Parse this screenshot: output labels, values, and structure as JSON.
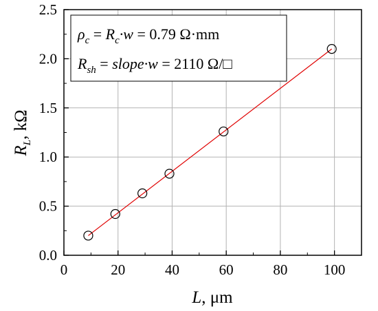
{
  "chart_data": {
    "type": "scatter",
    "x_axis": {
      "label_symbol": "L",
      "label_unit": ", μm",
      "range": [
        0,
        110
      ],
      "ticks": [
        0,
        20,
        40,
        60,
        80,
        100
      ],
      "tick_labels": [
        "0",
        "20",
        "40",
        "60",
        "80",
        "100"
      ]
    },
    "y_axis": {
      "label_symbol": "R",
      "label_subscript": "L",
      "label_unit": ", kΩ",
      "range": [
        0.0,
        2.5
      ],
      "ticks": [
        0.0,
        0.5,
        1.0,
        1.5,
        2.0,
        2.5
      ],
      "tick_labels": [
        "0.0",
        "0.5",
        "1.0",
        "1.5",
        "2.0",
        "2.5"
      ]
    },
    "grid": true,
    "series": [
      {
        "kind": "points",
        "marker": "open-circle",
        "color": "#000000",
        "x": [
          9,
          19,
          29,
          39,
          59,
          99
        ],
        "y": [
          0.2,
          0.42,
          0.63,
          0.83,
          1.26,
          2.1
        ]
      },
      {
        "kind": "fit-line",
        "color": "#e00000",
        "x": [
          9,
          99
        ],
        "y": [
          0.2,
          2.1
        ]
      }
    ],
    "annotation": {
      "line1": {
        "rho": "ρ",
        "rho_sub": "c",
        "eq1": " = ",
        "R": "R",
        "R_sub": "c",
        "dot_w": "·w",
        "rest": " = 0.79 Ω·mm"
      },
      "line2": {
        "R": "R",
        "R_sub": "sh",
        "eq1": " = ",
        "slope_w": "slope·w",
        "rest": " = 2110 Ω/□"
      }
    }
  }
}
